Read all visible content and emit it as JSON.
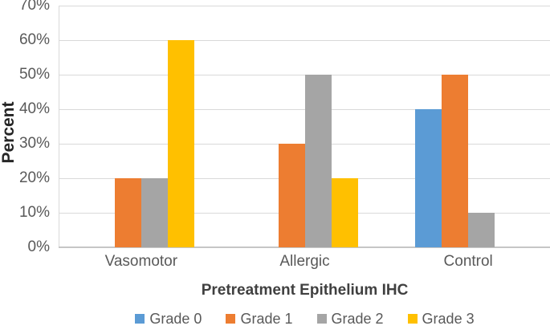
{
  "chart_data": {
    "type": "bar",
    "title": "",
    "categories": [
      "Vasomotor",
      "Allergic",
      "Control"
    ],
    "series": [
      {
        "name": "Grade 0",
        "color": "#5B9BD5",
        "values": [
          0,
          0,
          40
        ]
      },
      {
        "name": "Grade 1",
        "color": "#ED7D31",
        "values": [
          20,
          30,
          50
        ]
      },
      {
        "name": "Grade 2",
        "color": "#A5A5A5",
        "values": [
          20,
          50,
          10
        ]
      },
      {
        "name": "Grade 3",
        "color": "#FFC000",
        "values": [
          60,
          20,
          0
        ]
      }
    ],
    "xlabel": "Pretreatment Epithelium IHC",
    "ylabel": "Percent",
    "ylim": [
      0,
      70
    ],
    "ytick_step": 10,
    "ytick_labels": [
      "0%",
      "10%",
      "20%",
      "30%",
      "40%",
      "50%",
      "60%",
      "70%"
    ],
    "grid": true,
    "legend_position": "bottom",
    "colors": {
      "gridline": "#D9D9D9",
      "axis_line": "#C6C6C6",
      "tick_label": "#595959",
      "axis_title": "#404040",
      "y_axis_title": "#262626",
      "background": "#FFFFFF"
    }
  }
}
